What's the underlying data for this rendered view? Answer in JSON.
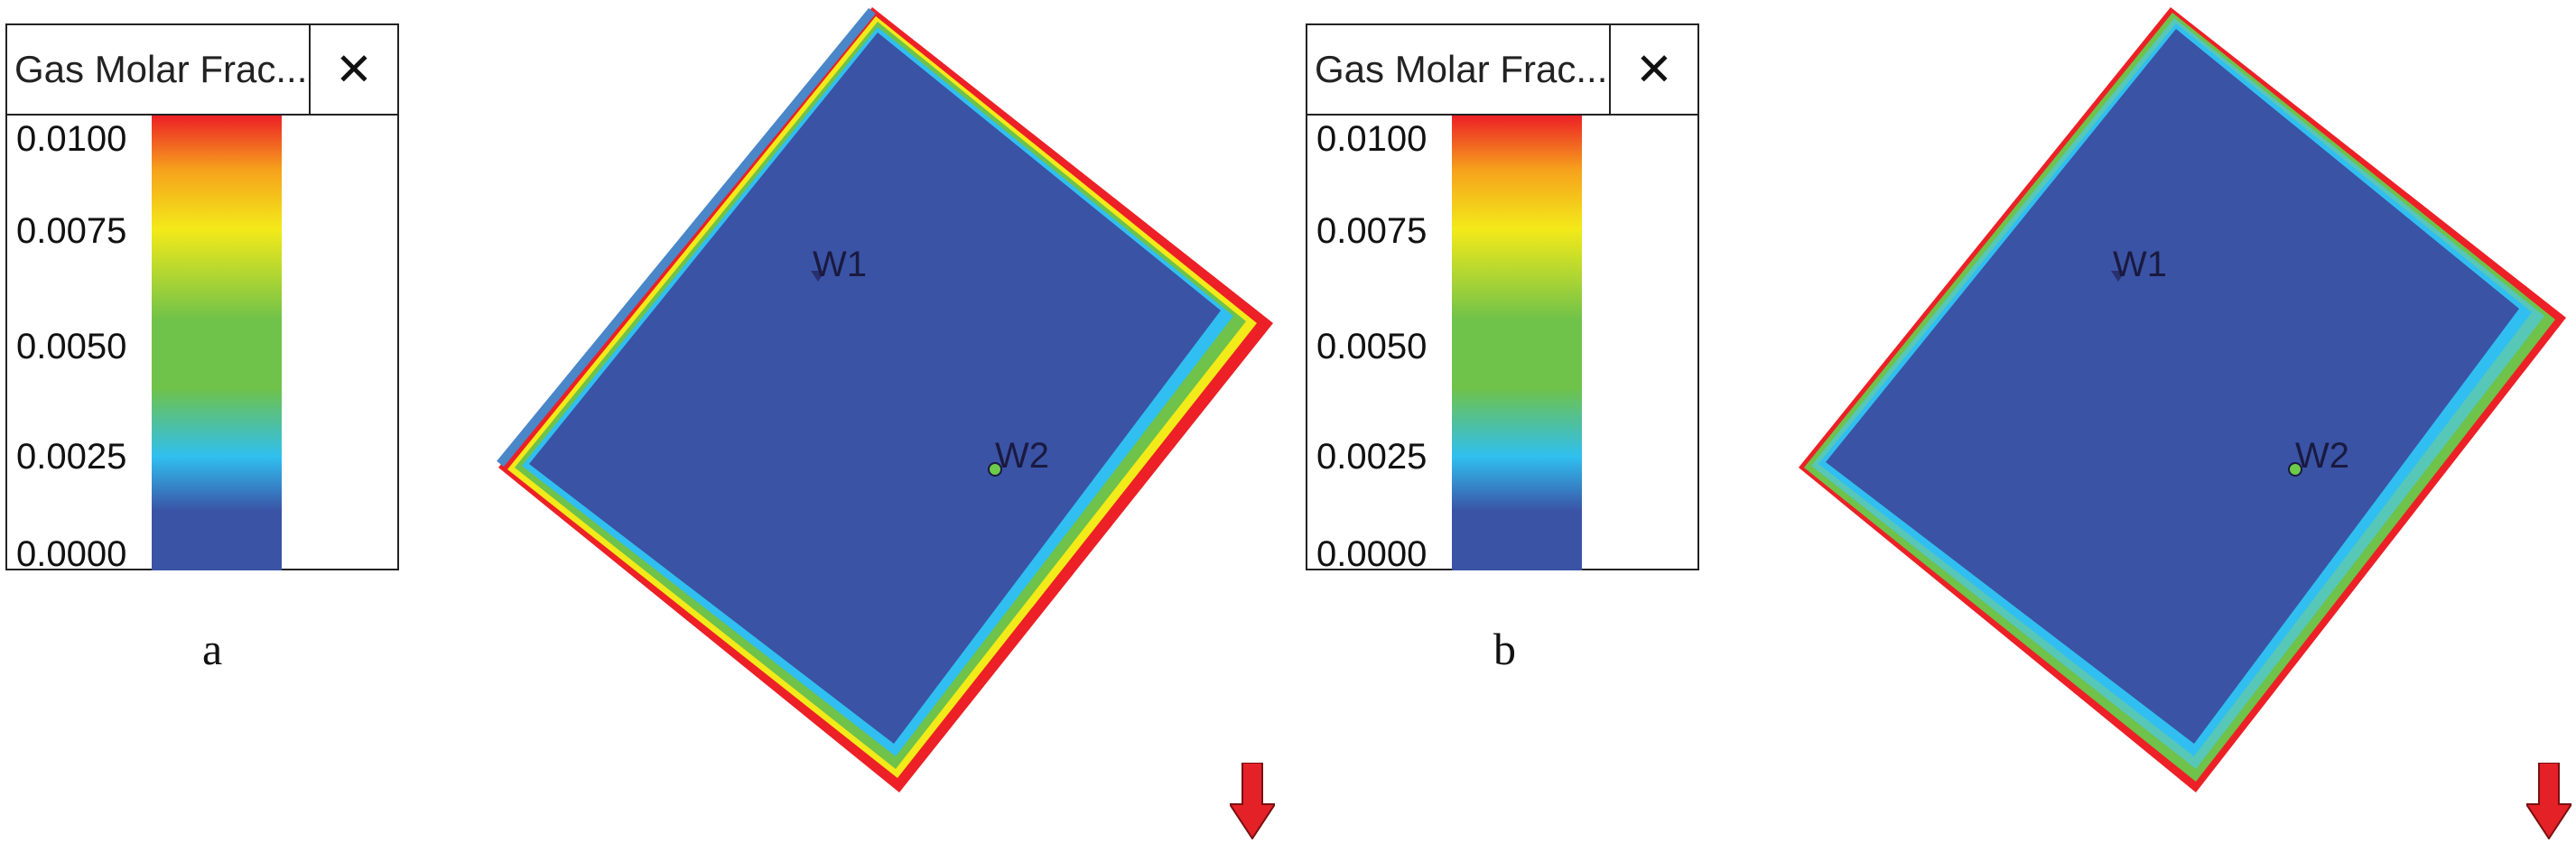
{
  "panels": [
    {
      "caption": "a",
      "legend": {
        "title": "Gas Molar Frac...",
        "close_icon": "close-icon",
        "ticks": [
          "0.0100",
          "0.0075",
          "0.0050",
          "0.0025",
          "0.0000"
        ]
      },
      "wells": [
        {
          "label": "W1"
        },
        {
          "label": "W2"
        }
      ],
      "direction_icon": "red-down-arrow-icon"
    },
    {
      "caption": "b",
      "legend": {
        "title": "Gas Molar Frac...",
        "close_icon": "close-icon",
        "ticks": [
          "0.0100",
          "0.0075",
          "0.0050",
          "0.0025",
          "0.0000"
        ]
      },
      "wells": [
        {
          "label": "W1"
        },
        {
          "label": "W2"
        }
      ],
      "direction_icon": "red-down-arrow-icon"
    }
  ],
  "colors": {
    "reservoir": "#3a53a5",
    "colormap": [
      "#3a53a5",
      "#30bff0",
      "#6fc24a",
      "#f3ea19",
      "#ec2026"
    ],
    "arrow": "#e42127",
    "well_w2": "#6ccb4a"
  }
}
